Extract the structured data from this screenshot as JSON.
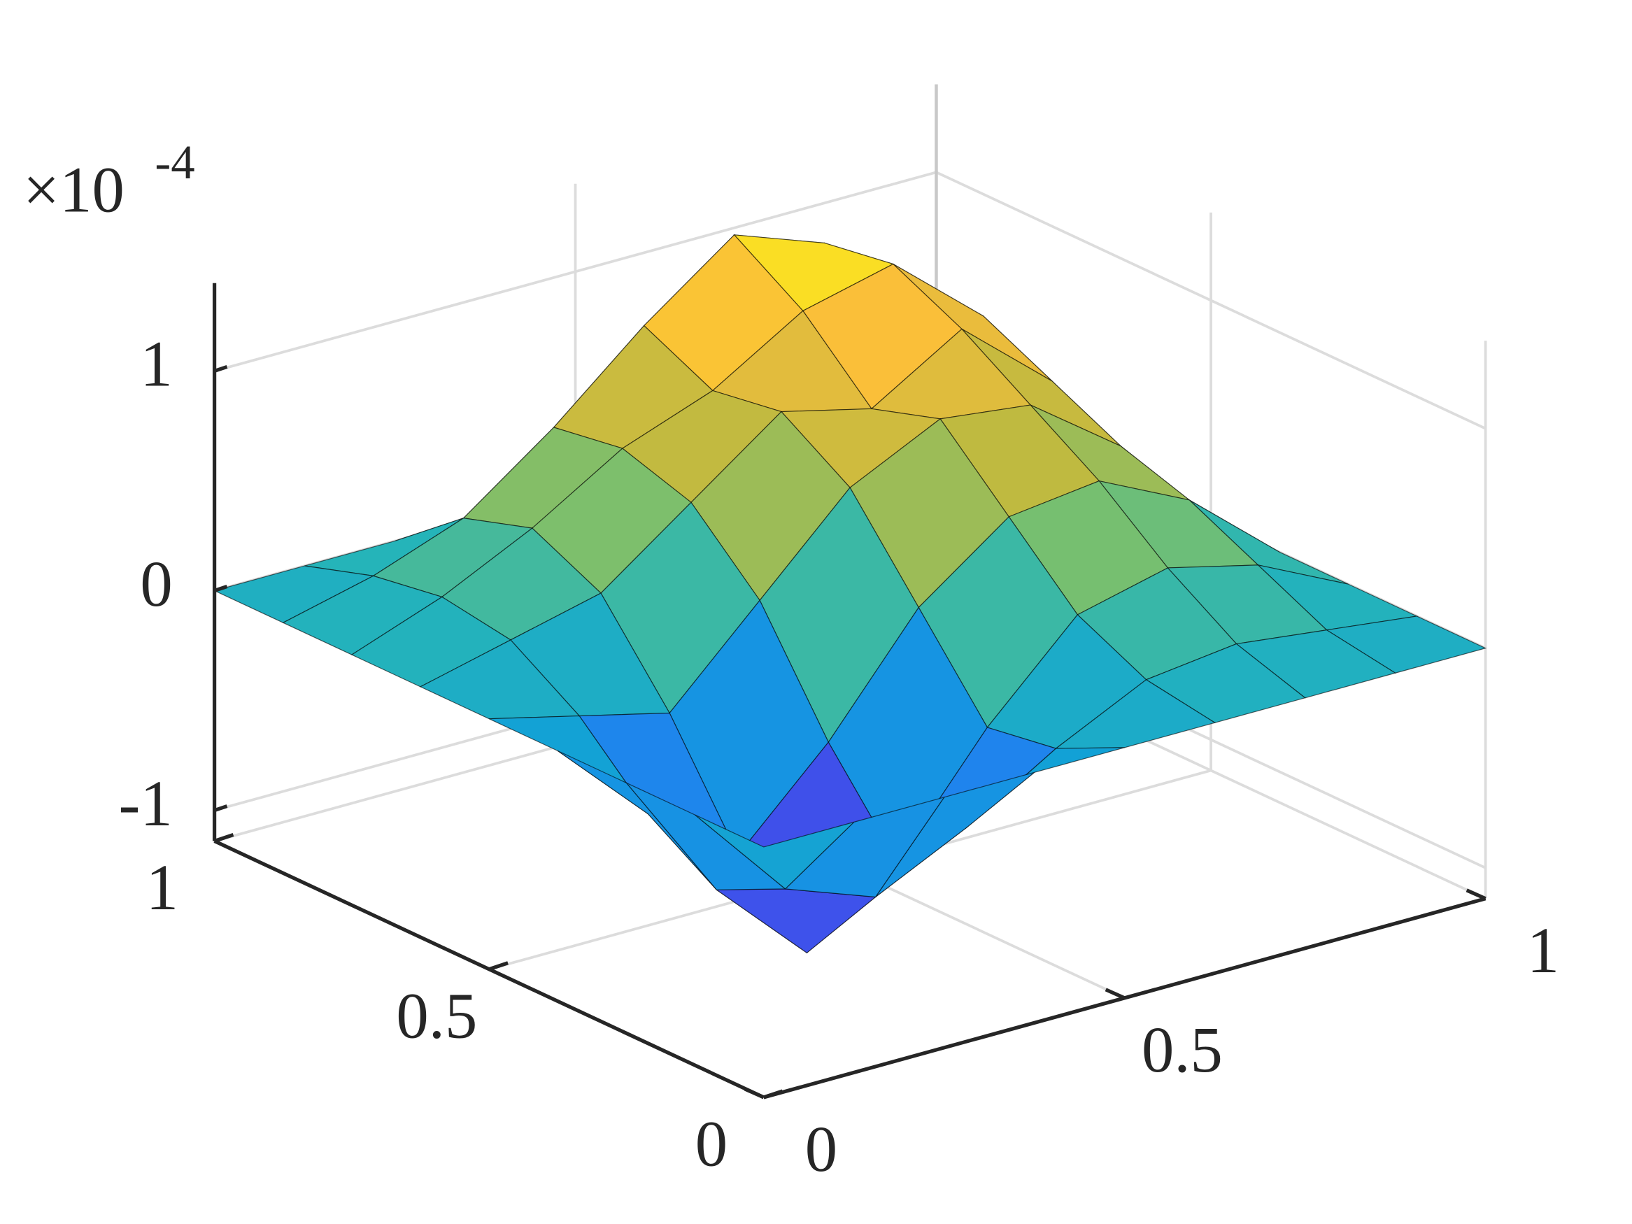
{
  "chart_data": {
    "type": "surface",
    "x": [
      0,
      0.125,
      0.25,
      0.375,
      0.5,
      0.625,
      0.75,
      0.875,
      1
    ],
    "y": [
      0,
      0.125,
      0.25,
      0.375,
      0.5,
      0.625,
      0.75,
      0.875,
      1
    ],
    "z": [
      [
        0,
        0,
        0,
        0,
        0,
        0,
        0,
        0,
        0
      ],
      [
        0,
        -0.45,
        -0.6,
        -0.4,
        -0.15,
        0.05,
        0.1,
        0.05,
        0
      ],
      [
        0,
        -0.6,
        -1.0,
        -0.7,
        -0.2,
        0.2,
        0.3,
        0.2,
        0
      ],
      [
        0,
        -0.4,
        -0.7,
        -0.3,
        0.2,
        0.5,
        0.55,
        0.35,
        0
      ],
      [
        0,
        -0.1,
        -0.2,
        0.2,
        0.6,
        0.8,
        0.75,
        0.45,
        0
      ],
      [
        0,
        0.1,
        0.2,
        0.5,
        0.8,
        0.7,
        0.95,
        0.6,
        0
      ],
      [
        0,
        0.15,
        0.35,
        0.6,
        0.75,
        1.0,
        1.1,
        0.75,
        0
      ],
      [
        0,
        0.1,
        0.25,
        0.55,
        0.9,
        1.2,
        1.05,
        0.65,
        0
      ],
      [
        0,
        0,
        0,
        0,
        0,
        0,
        0,
        0,
        0
      ]
    ],
    "xlim": [
      0,
      1
    ],
    "ylim": [
      0,
      1
    ],
    "zlim": [
      -1.14,
      1.4
    ],
    "xticks": [
      0,
      0.5,
      1
    ],
    "yticks": [
      0,
      0.5,
      1
    ],
    "zticks": [
      -1,
      0,
      1
    ],
    "z_multiplier": {
      "base": "×10",
      "exponent": "-4"
    },
    "colormap": "parula",
    "grid": true,
    "mesh_color": "#000000"
  }
}
